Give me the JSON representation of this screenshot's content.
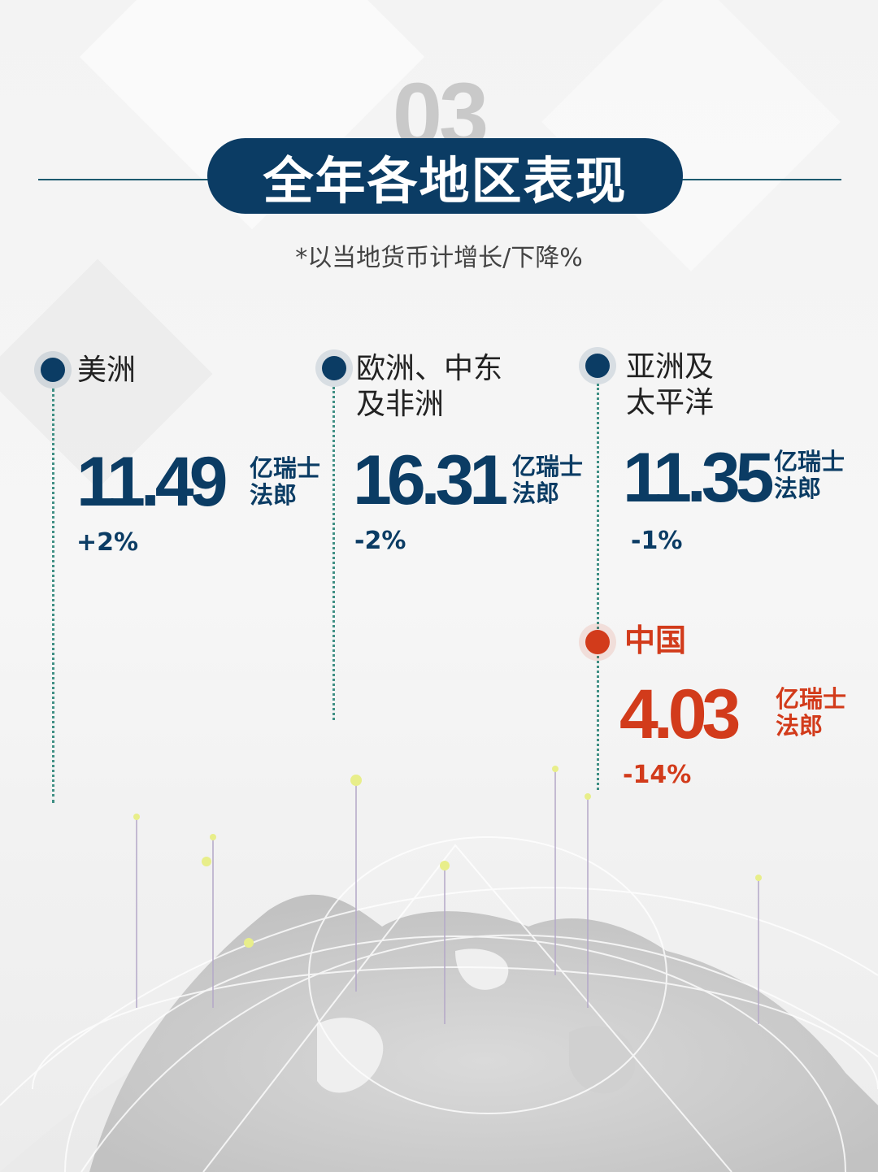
{
  "header": {
    "section_number": "03",
    "title": "全年各地区表现",
    "note": "*以当地货币计增长/下降%"
  },
  "colors": {
    "navy": "#0b3c64",
    "red": "#d23b1b",
    "line": "#3f8f84"
  },
  "regions": [
    {
      "name": "美洲",
      "value": "11.49",
      "unit_line1": "亿瑞士",
      "unit_line2": "法郎",
      "change": "+2%"
    },
    {
      "name_line1": "欧洲、中东",
      "name_line2": "及非洲",
      "value": "16.31",
      "unit_line1": "亿瑞士",
      "unit_line2": "法郎",
      "change": "-2%"
    },
    {
      "name_line1": "亚洲及",
      "name_line2": "太平洋",
      "value": "11.35",
      "unit_line1": "亿瑞士",
      "unit_line2": "法郎",
      "change": "-1%"
    },
    {
      "name": "中国",
      "value": "4.03",
      "unit_line1": "亿瑞士",
      "unit_line2": "法郎",
      "change": "-14%"
    }
  ]
}
